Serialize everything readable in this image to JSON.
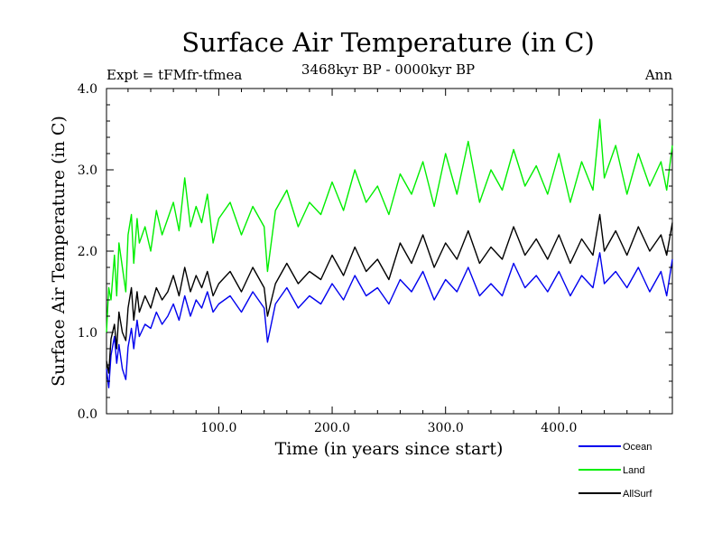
{
  "chart_data": {
    "type": "line",
    "title": "Surface Air Temperature (in C)",
    "subtitle": "3468kyr BP - 0000kyr BP",
    "left_label": "Expt = tFMfr-tfmea",
    "right_label": "Ann",
    "xlabel": "Time (in years since start)",
    "ylabel": "Surface Air Temperature (in C)",
    "xlim": [
      1,
      500
    ],
    "ylim": [
      0,
      4
    ],
    "x_ticks": [
      {
        "value": 100,
        "label": "100.0"
      },
      {
        "value": 200,
        "label": "200.0"
      },
      {
        "value": 300,
        "label": "300.0"
      },
      {
        "value": 400,
        "label": "400.0"
      }
    ],
    "y_ticks": [
      {
        "value": 0,
        "label": "0.0"
      },
      {
        "value": 1,
        "label": "1.0"
      },
      {
        "value": 2,
        "label": "2.0"
      },
      {
        "value": 3,
        "label": "3.0"
      },
      {
        "value": 4,
        "label": "4.0"
      }
    ],
    "x": [
      1,
      3,
      5,
      8,
      10,
      12,
      15,
      18,
      20,
      23,
      25,
      28,
      30,
      35,
      40,
      45,
      50,
      55,
      60,
      65,
      70,
      75,
      80,
      85,
      90,
      95,
      100,
      110,
      120,
      130,
      140,
      143,
      150,
      160,
      170,
      180,
      190,
      200,
      210,
      220,
      230,
      240,
      250,
      260,
      270,
      280,
      290,
      300,
      310,
      320,
      330,
      340,
      350,
      360,
      370,
      380,
      390,
      400,
      410,
      420,
      430,
      436,
      440,
      450,
      460,
      470,
      480,
      490,
      495,
      500
    ],
    "series": [
      {
        "name": "Ocean",
        "color": "#0000ee",
        "values": [
          0.55,
          0.32,
          0.72,
          0.95,
          0.62,
          0.85,
          0.55,
          0.42,
          0.82,
          1.05,
          0.8,
          1.15,
          0.95,
          1.1,
          1.05,
          1.25,
          1.1,
          1.2,
          1.35,
          1.15,
          1.45,
          1.2,
          1.4,
          1.3,
          1.5,
          1.25,
          1.35,
          1.45,
          1.25,
          1.5,
          1.3,
          0.88,
          1.35,
          1.55,
          1.3,
          1.45,
          1.35,
          1.6,
          1.4,
          1.7,
          1.45,
          1.55,
          1.35,
          1.65,
          1.5,
          1.75,
          1.4,
          1.65,
          1.5,
          1.8,
          1.45,
          1.6,
          1.45,
          1.85,
          1.55,
          1.7,
          1.5,
          1.75,
          1.45,
          1.7,
          1.55,
          1.98,
          1.6,
          1.75,
          1.55,
          1.8,
          1.5,
          1.75,
          1.45,
          1.9
        ]
      },
      {
        "name": "Land",
        "color": "#00ee00",
        "values": [
          1.0,
          1.55,
          1.4,
          1.95,
          1.45,
          2.1,
          1.8,
          1.5,
          2.2,
          2.45,
          1.85,
          2.4,
          2.1,
          2.3,
          2.0,
          2.5,
          2.2,
          2.4,
          2.6,
          2.25,
          2.9,
          2.3,
          2.55,
          2.35,
          2.7,
          2.1,
          2.4,
          2.6,
          2.2,
          2.55,
          2.3,
          1.75,
          2.5,
          2.75,
          2.3,
          2.6,
          2.45,
          2.85,
          2.5,
          3.0,
          2.6,
          2.8,
          2.45,
          2.95,
          2.7,
          3.1,
          2.55,
          3.2,
          2.7,
          3.35,
          2.6,
          3.0,
          2.75,
          3.25,
          2.8,
          3.05,
          2.7,
          3.2,
          2.6,
          3.1,
          2.75,
          3.62,
          2.9,
          3.3,
          2.7,
          3.2,
          2.8,
          3.1,
          2.75,
          3.3
        ]
      },
      {
        "name": "AllSurf",
        "color": "#000000",
        "values": [
          0.65,
          0.5,
          0.92,
          1.1,
          0.8,
          1.25,
          1.0,
          0.9,
          1.3,
          1.55,
          1.15,
          1.5,
          1.25,
          1.45,
          1.3,
          1.55,
          1.4,
          1.5,
          1.7,
          1.45,
          1.8,
          1.5,
          1.7,
          1.55,
          1.75,
          1.45,
          1.6,
          1.75,
          1.5,
          1.8,
          1.55,
          1.2,
          1.6,
          1.85,
          1.6,
          1.75,
          1.65,
          1.95,
          1.7,
          2.05,
          1.75,
          1.9,
          1.65,
          2.1,
          1.85,
          2.2,
          1.8,
          2.1,
          1.9,
          2.25,
          1.85,
          2.05,
          1.9,
          2.3,
          1.95,
          2.15,
          1.9,
          2.2,
          1.85,
          2.15,
          1.95,
          2.45,
          2.0,
          2.25,
          1.95,
          2.3,
          2.0,
          2.2,
          1.95,
          2.35
        ]
      }
    ],
    "legend_position": "bottom-right"
  }
}
